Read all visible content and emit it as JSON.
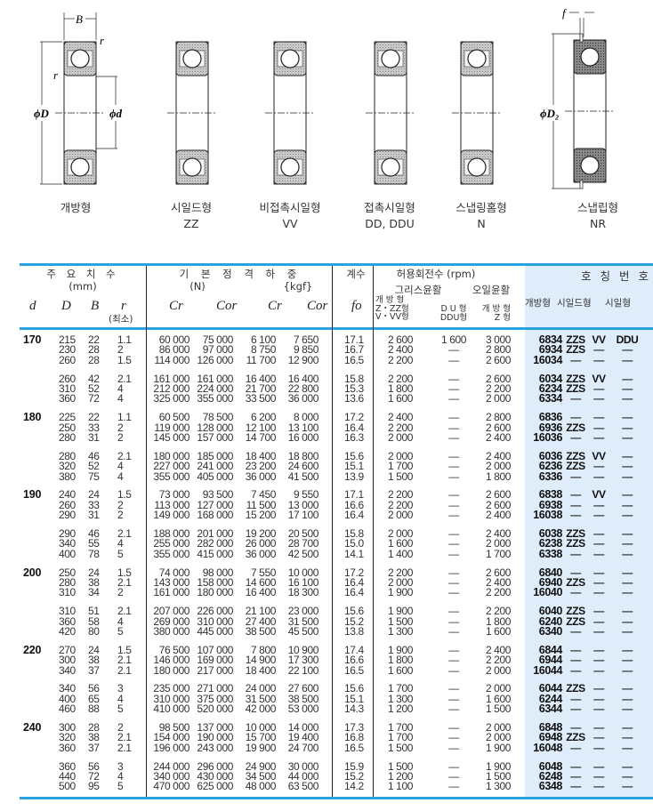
{
  "diagrams": {
    "dims": {
      "B": "B",
      "r": "r",
      "phiD": "ϕD",
      "phid": "ϕd",
      "f": "f",
      "phiD2": "ϕD₂"
    },
    "types": [
      {
        "name": "개방형",
        "code": ""
      },
      {
        "name": "시일드형",
        "code": "ZZ"
      },
      {
        "name": "비접촉시일형",
        "code": "VV"
      },
      {
        "name": "접촉시일형",
        "code": "DD, DDU"
      },
      {
        "name": "스냅링홈형",
        "code": "N"
      },
      {
        "name": "스냅립형",
        "code": "NR"
      }
    ]
  },
  "colors": {
    "accent": "#2aa2dd",
    "highlight": "#deedf9"
  },
  "header": {
    "main_dims": "주 요 치 수",
    "mm": "(mm)",
    "basic_load": "기 본 정 격 하 중",
    "N": "(N)",
    "kgf": "{kgf}",
    "factor": "계수",
    "speed": "허용회전수 (rpm)",
    "grease": "그리스윤활",
    "oil": "오일윤활",
    "designation": "호 칭 번 호",
    "open": "개방형",
    "shielded": "시일드형",
    "sealed": "시일형",
    "d": "d",
    "D": "D",
    "B": "B",
    "r": "r",
    "r_min": "(최소)",
    "Cr": "Cr",
    "Cor": "Cor",
    "Cr2": "Cr",
    "Cor2": "Cor",
    "fo": "fo",
    "grease_open": [
      "개 방 형",
      "Z・ZZ형",
      "V・VV형"
    ],
    "grease_du": [
      "D U 형",
      "DDU형"
    ],
    "oil_open": [
      "개 방 형",
      "Z 형"
    ]
  },
  "table": {
    "sections": [
      {
        "d": "170",
        "groups": [
          [
            [
              "215",
              "22",
              "1.1",
              "60 000",
              "75 000",
              "6 100",
              "7 650",
              "17.1",
              "2 600",
              "1 600",
              "3 000",
              "6834",
              "ZZS",
              "VV",
              "DDU"
            ],
            [
              "230",
              "28",
              "2",
              "86 000",
              "97 000",
              "8 750",
              "9 850",
              "16.7",
              "2 400",
              "—",
              "2 800",
              "6934",
              "ZZS",
              "—",
              "—"
            ],
            [
              "260",
              "28",
              "1.5",
              "114 000",
              "126 000",
              "11 700",
              "12 900",
              "16.5",
              "2 200",
              "—",
              "2 600",
              "16034",
              "—",
              "—",
              "—"
            ]
          ],
          [
            [
              "260",
              "42",
              "2.1",
              "161 000",
              "161 000",
              "16 400",
              "16 400",
              "15.8",
              "2 200",
              "—",
              "2 600",
              "6034",
              "ZZS",
              "VV",
              "—"
            ],
            [
              "310",
              "52",
              "4",
              "212 000",
              "224 000",
              "21 700",
              "22 800",
              "15.3",
              "1 800",
              "—",
              "2 200",
              "6234",
              "ZZS",
              "—",
              "—"
            ],
            [
              "360",
              "72",
              "4",
              "325 000",
              "355 000",
              "33 500",
              "36 000",
              "13.6",
              "1 600",
              "—",
              "2 000",
              "6334",
              "—",
              "—",
              "—"
            ]
          ]
        ]
      },
      {
        "d": "180",
        "groups": [
          [
            [
              "225",
              "22",
              "1.1",
              "60 500",
              "78 500",
              "6 200",
              "8 000",
              "17.2",
              "2 400",
              "—",
              "2 800",
              "6836",
              "—",
              "—",
              "—"
            ],
            [
              "250",
              "33",
              "2",
              "119 000",
              "128 000",
              "12 100",
              "13 100",
              "16.4",
              "2 200",
              "—",
              "2 600",
              "6936",
              "ZZS",
              "—",
              "—"
            ],
            [
              "280",
              "31",
              "2",
              "145 000",
              "157 000",
              "14 700",
              "16 000",
              "16.3",
              "2 000",
              "—",
              "2 400",
              "16036",
              "—",
              "—",
              "—"
            ]
          ],
          [
            [
              "280",
              "46",
              "2.1",
              "180 000",
              "185 000",
              "18 400",
              "18 800",
              "15.6",
              "2 000",
              "—",
              "2 400",
              "6036",
              "ZZS",
              "VV",
              "—"
            ],
            [
              "320",
              "52",
              "4",
              "227 000",
              "241 000",
              "23 200",
              "24 600",
              "15.1",
              "1 700",
              "—",
              "2 000",
              "6236",
              "ZZS",
              "—",
              "—"
            ],
            [
              "380",
              "75",
              "4",
              "355 000",
              "405 000",
              "36 000",
              "41 500",
              "13.9",
              "1 500",
              "—",
              "1 800",
              "6336",
              "—",
              "—",
              "—"
            ]
          ]
        ]
      },
      {
        "d": "190",
        "groups": [
          [
            [
              "240",
              "24",
              "1.5",
              "73 000",
              "93 500",
              "7 450",
              "9 550",
              "17.1",
              "2 200",
              "—",
              "2 600",
              "6838",
              "—",
              "VV",
              "—"
            ],
            [
              "260",
              "33",
              "2",
              "113 000",
              "127 000",
              "11 500",
              "13 000",
              "16.6",
              "2 200",
              "—",
              "2 600",
              "6938",
              "—",
              "—",
              "—"
            ],
            [
              "290",
              "31",
              "2",
              "149 000",
              "168 000",
              "15 200",
              "17 100",
              "16.4",
              "2 000",
              "—",
              "2 400",
              "16038",
              "—",
              "—",
              "—"
            ]
          ],
          [
            [
              "290",
              "46",
              "2.1",
              "188 000",
              "201 000",
              "19 200",
              "20 500",
              "15.8",
              "2 000",
              "—",
              "2 400",
              "6038",
              "ZZS",
              "—",
              "—"
            ],
            [
              "340",
              "55",
              "4",
              "255 000",
              "282 000",
              "26 000",
              "28 700",
              "15.0",
              "1 600",
              "—",
              "2 000",
              "6238",
              "ZZS",
              "—",
              "—"
            ],
            [
              "400",
              "78",
              "5",
              "355 000",
              "415 000",
              "36 000",
              "42 500",
              "14.1",
              "1 400",
              "—",
              "1 700",
              "6338",
              "—",
              "—",
              "—"
            ]
          ]
        ]
      },
      {
        "d": "200",
        "groups": [
          [
            [
              "250",
              "24",
              "1.5",
              "74 000",
              "98 000",
              "7 550",
              "10 000",
              "17.2",
              "2 200",
              "—",
              "2 600",
              "6840",
              "—",
              "—",
              "—"
            ],
            [
              "280",
              "38",
              "2.1",
              "143 000",
              "158 000",
              "14 600",
              "16 100",
              "16.4",
              "2 000",
              "—",
              "2 400",
              "6940",
              "ZZS",
              "—",
              "—"
            ],
            [
              "310",
              "34",
              "2",
              "161 000",
              "180 000",
              "16 400",
              "18 300",
              "16.4",
              "1 900",
              "—",
              "2 200",
              "16040",
              "—",
              "—",
              "—"
            ]
          ],
          [
            [
              "310",
              "51",
              "2.1",
              "207 000",
              "226 000",
              "21 100",
              "23 000",
              "15.6",
              "1 900",
              "—",
              "2 200",
              "6040",
              "ZZS",
              "—",
              "—"
            ],
            [
              "360",
              "58",
              "4",
              "269 000",
              "310 000",
              "27 400",
              "31 500",
              "15.2",
              "1 500",
              "—",
              "1 800",
              "6240",
              "ZZS",
              "—",
              "—"
            ],
            [
              "420",
              "80",
              "5",
              "380 000",
              "445 000",
              "38 500",
              "45 500",
              "13.8",
              "1 300",
              "—",
              "1 600",
              "6340",
              "—",
              "—",
              "—"
            ]
          ]
        ]
      },
      {
        "d": "220",
        "groups": [
          [
            [
              "270",
              "24",
              "1.5",
              "76 500",
              "107 000",
              "7 800",
              "10 900",
              "17.4",
              "1 900",
              "—",
              "2 400",
              "6844",
              "—",
              "—",
              "—"
            ],
            [
              "300",
              "38",
              "2.1",
              "146 000",
              "169 000",
              "14 900",
              "17 300",
              "16.6",
              "1 800",
              "—",
              "2 200",
              "6944",
              "—",
              "—",
              "—"
            ],
            [
              "340",
              "37",
              "2.1",
              "180 000",
              "217 000",
              "18 400",
              "22 100",
              "16.5",
              "1 600",
              "—",
              "2 000",
              "16044",
              "—",
              "—",
              "—"
            ]
          ],
          [
            [
              "340",
              "56",
              "3",
              "235 000",
              "271 000",
              "24 000",
              "27 600",
              "15.6",
              "1 700",
              "—",
              "2 000",
              "6044",
              "ZZS",
              "—",
              "—"
            ],
            [
              "400",
              "65",
              "4",
              "310 000",
              "375 000",
              "31 500",
              "38 500",
              "15.1",
              "1 300",
              "—",
              "1 600",
              "6244",
              "—",
              "—",
              "—"
            ],
            [
              "460",
              "88",
              "5",
              "410 000",
              "520 000",
              "42 000",
              "53 000",
              "14.3",
              "1 200",
              "—",
              "1 500",
              "6344",
              "—",
              "—",
              "—"
            ]
          ]
        ]
      },
      {
        "d": "240",
        "groups": [
          [
            [
              "300",
              "28",
              "2",
              "98 500",
              "137 000",
              "10 000",
              "14 000",
              "17.3",
              "1 700",
              "—",
              "2 000",
              "6848",
              "—",
              "—",
              "—"
            ],
            [
              "320",
              "38",
              "2.1",
              "154 000",
              "190 000",
              "15 700",
              "19 400",
              "16.8",
              "1 700",
              "—",
              "2 000",
              "6948",
              "ZZS",
              "—",
              "—"
            ],
            [
              "360",
              "37",
              "2.1",
              "196 000",
              "243 000",
              "19 900",
              "24 700",
              "16.5",
              "1 500",
              "—",
              "1 900",
              "16048",
              "—",
              "—",
              "—"
            ]
          ],
          [
            [
              "360",
              "56",
              "3",
              "244 000",
              "296 000",
              "24 900",
              "30 000",
              "15.9",
              "1 500",
              "—",
              "1 900",
              "6048",
              "—",
              "—",
              "—"
            ],
            [
              "440",
              "72",
              "4",
              "340 000",
              "430 000",
              "34 500",
              "44 000",
              "15.2",
              "1 200",
              "—",
              "1 500",
              "6248",
              "—",
              "—",
              "—"
            ],
            [
              "500",
              "95",
              "5",
              "470 000",
              "625 000",
              "48 000",
              "63 500",
              "14.2",
              "1 100",
              "—",
              "1 300",
              "6348",
              "—",
              "—",
              "—"
            ]
          ]
        ]
      }
    ]
  }
}
